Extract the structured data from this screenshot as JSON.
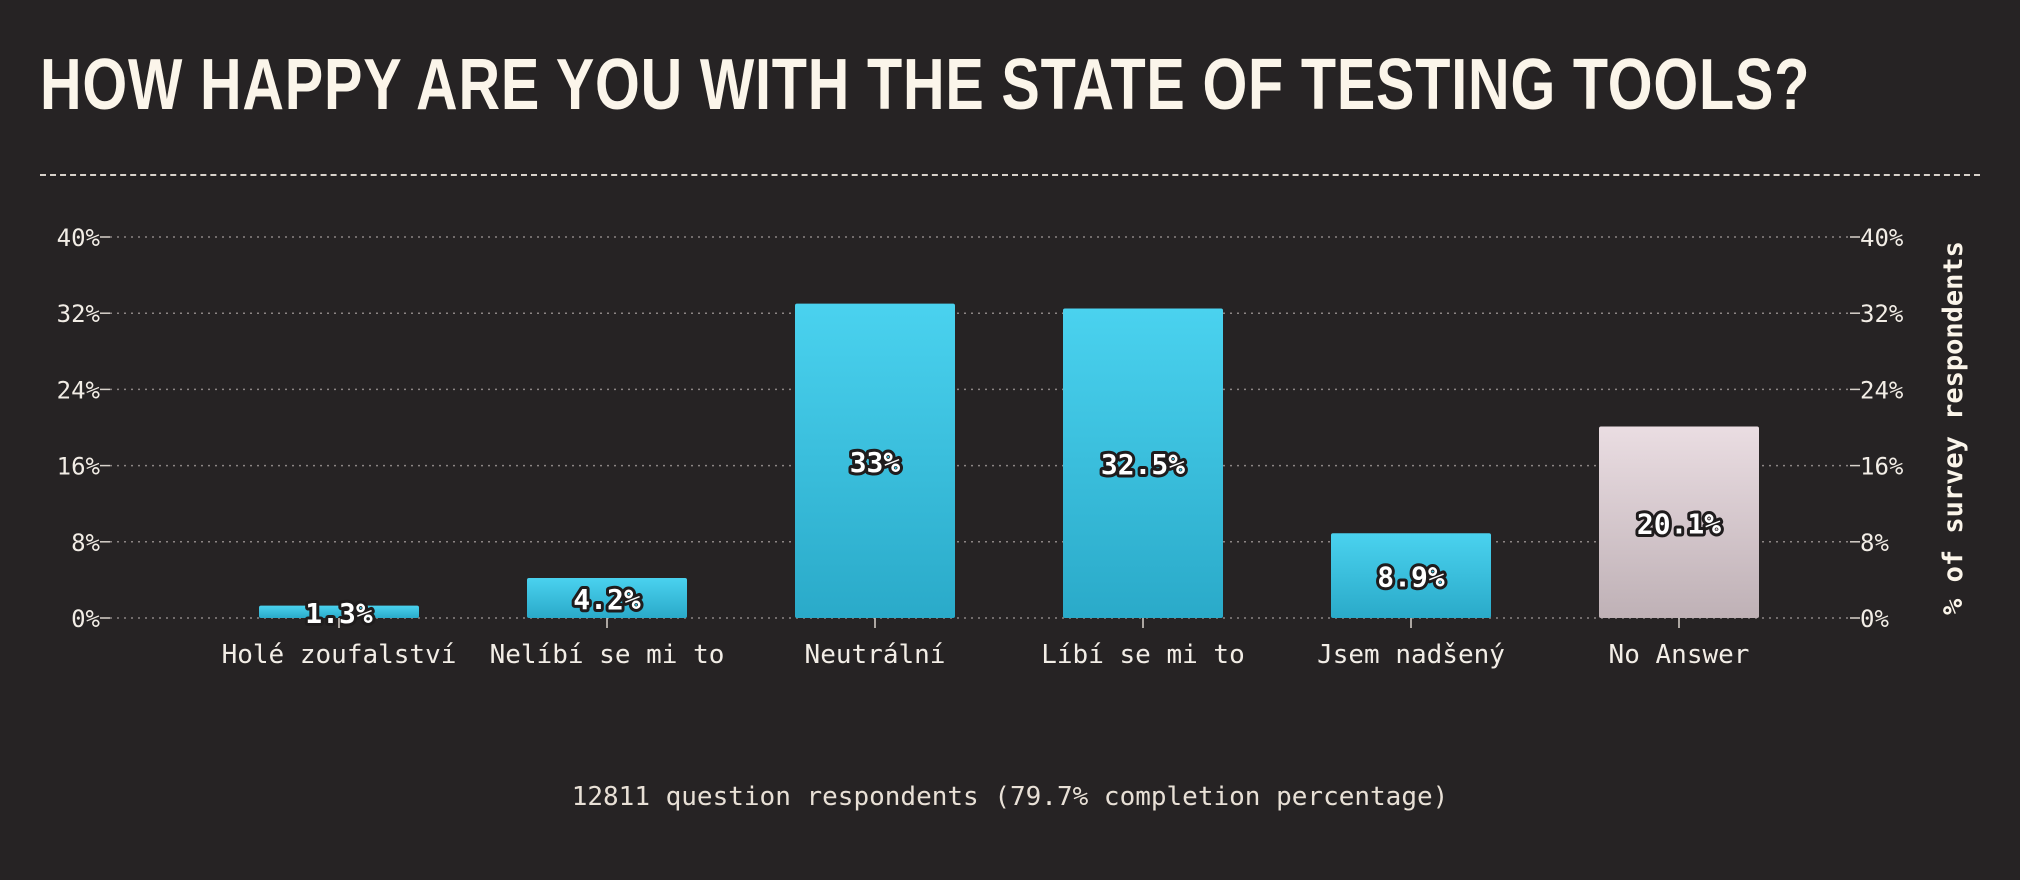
{
  "title": "HOW HAPPY ARE YOU WITH THE STATE OF TESTING TOOLS?",
  "footer": "12811 question respondents (79.7% completion percentage)",
  "chart_data": {
    "type": "bar",
    "title": "HOW HAPPY ARE YOU WITH THE STATE OF TESTING TOOLS?",
    "categories": [
      "Holé zoufalství",
      "Nelíbí se mi to",
      "Neutrální",
      "Líbí se mi to",
      "Jsem nadšený",
      "No Answer"
    ],
    "values": [
      1.3,
      4.2,
      33,
      32.5,
      8.9,
      20.1
    ],
    "value_labels": [
      "1.3%",
      "4.2%",
      "33%",
      "32.5%",
      "8.9%",
      "20.1%"
    ],
    "ylabel": "% of survey respondents",
    "ylim": [
      0,
      40
    ],
    "yticks": [
      0,
      8,
      16,
      24,
      32,
      40
    ],
    "ytick_labels": [
      "0%",
      "8%",
      "16%",
      "24%",
      "32%",
      "40%"
    ],
    "grid": true,
    "colors": {
      "bar_top": "#4ad2ef",
      "bar_bottom": "#2aaac9",
      "na_top": "#eadde2",
      "na_bottom": "#bfb1b6"
    }
  }
}
